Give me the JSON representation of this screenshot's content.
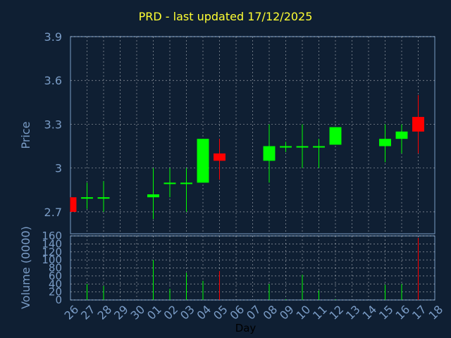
{
  "chart_data": [
    {
      "type": "candlestick",
      "title": "PRD - last updated 17/12/2025",
      "ylabel": "Price",
      "xlabel": "Day",
      "ylim": [
        2.55,
        3.9
      ],
      "yticks": [
        "2.7",
        "3",
        "3.3",
        "3.6",
        "3.9"
      ],
      "ytick_values": [
        2.7,
        3.0,
        3.3,
        3.6,
        3.9
      ],
      "xticks": [
        "26",
        "27",
        "28",
        "29",
        "30",
        "01",
        "02",
        "03",
        "04",
        "05",
        "06",
        "07",
        "08",
        "09",
        "10",
        "11",
        "12",
        "13",
        "14",
        "15",
        "16",
        "17",
        "18"
      ],
      "candles": [
        {
          "day": "26",
          "open": 2.8,
          "high": 2.8,
          "low": 2.7,
          "close": 2.7
        },
        {
          "day": "27",
          "open": 2.8,
          "high": 2.9,
          "low": 2.72,
          "close": 2.8
        },
        {
          "day": "28",
          "open": 2.8,
          "high": 2.91,
          "low": 2.7,
          "close": 2.8
        },
        {
          "day": "01",
          "open": 2.8,
          "high": 3.0,
          "low": 2.65,
          "close": 2.82
        },
        {
          "day": "02",
          "open": 2.9,
          "high": 3.0,
          "low": 2.8,
          "close": 2.9
        },
        {
          "day": "03",
          "open": 2.9,
          "high": 3.0,
          "low": 2.7,
          "close": 2.9
        },
        {
          "day": "04",
          "open": 2.9,
          "high": 3.2,
          "low": 2.9,
          "close": 3.2
        },
        {
          "day": "05",
          "open": 3.1,
          "high": 3.2,
          "low": 2.92,
          "close": 3.05
        },
        {
          "day": "08",
          "open": 3.05,
          "high": 3.3,
          "low": 2.9,
          "close": 3.15
        },
        {
          "day": "09",
          "open": 3.15,
          "high": 3.18,
          "low": 3.11,
          "close": 3.15
        },
        {
          "day": "10",
          "open": 3.15,
          "high": 3.3,
          "low": 3.0,
          "close": 3.15
        },
        {
          "day": "11",
          "open": 3.15,
          "high": 3.2,
          "low": 3.0,
          "close": 3.15
        },
        {
          "day": "12",
          "open": 3.16,
          "high": 3.28,
          "low": 3.16,
          "close": 3.28
        },
        {
          "day": "15",
          "open": 3.15,
          "high": 3.3,
          "low": 3.04,
          "close": 3.2
        },
        {
          "day": "16",
          "open": 3.2,
          "high": 3.3,
          "low": 3.1,
          "close": 3.25
        },
        {
          "day": "17",
          "open": 3.35,
          "high": 3.5,
          "low": 3.1,
          "close": 3.25
        }
      ]
    },
    {
      "type": "bar",
      "ylabel": "Volume (0000)",
      "ylim": [
        0,
        160
      ],
      "yticks": [
        "0",
        "20",
        "40",
        "60",
        "80",
        "100",
        "120",
        "140",
        "160"
      ],
      "ytick_values": [
        0,
        20,
        40,
        60,
        80,
        100,
        120,
        140,
        160
      ],
      "categories": [
        "26",
        "27",
        "28",
        "01",
        "02",
        "03",
        "04",
        "05",
        "08",
        "09",
        "10",
        "11",
        "12",
        "15",
        "16",
        "17"
      ],
      "values": [
        0,
        40,
        35,
        100,
        28,
        68,
        48,
        72,
        40,
        2,
        63,
        24,
        2,
        38,
        40,
        155
      ],
      "colors": [
        "red",
        "green",
        "green",
        "green",
        "green",
        "green",
        "green",
        "red",
        "green",
        "green",
        "green",
        "green",
        "green",
        "green",
        "green",
        "red"
      ]
    }
  ],
  "colors": {
    "background": "#0f1f33",
    "title": "#ffff33",
    "axis_text": "#7a9cc6",
    "up": "#00ff00",
    "down": "#ff0000",
    "grid": "#ffffff"
  }
}
